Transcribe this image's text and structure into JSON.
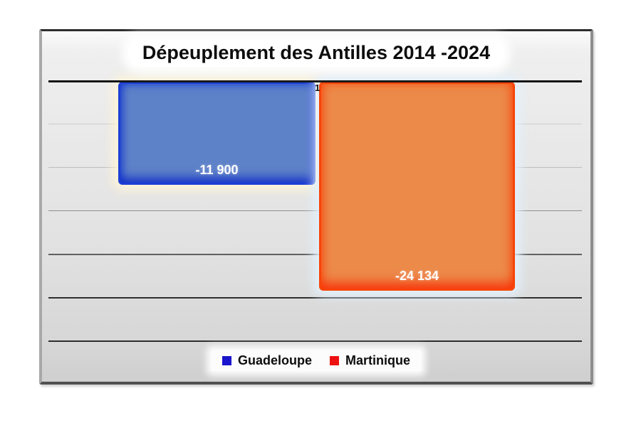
{
  "chart_data": {
    "type": "bar",
    "title": "Dépeuplement des Antilles 2014 -2024",
    "categories": [
      "1"
    ],
    "series": [
      {
        "name": "Guadeloupe",
        "values": [
          -11900
        ],
        "data_labels": [
          "-11 900"
        ],
        "fill_color": "#5e82c8",
        "edge_color": "#1d3fd6"
      },
      {
        "name": "Martinique",
        "values": [
          -24134
        ],
        "data_labels": [
          "-24 134"
        ],
        "fill_color": "#ec8a4a",
        "edge_color": "#f84408"
      }
    ],
    "ylim": [
      -30000,
      0
    ],
    "gridline_step": 5000,
    "grid": true,
    "y_axis_labels_visible": false,
    "data_labels_visible": true,
    "legend_position": "bottom"
  },
  "legend": {
    "items": [
      {
        "label": "Guadeloupe",
        "swatch_color": "#1a14cc"
      },
      {
        "label": "Martinique",
        "swatch_color": "#ee1111"
      }
    ]
  },
  "colors": {
    "chart_background_top": "#f7f7f7",
    "chart_background_bottom": "#cfcfcf",
    "zero_axis_line": "#141414",
    "title_text": "#0d0d0d"
  }
}
